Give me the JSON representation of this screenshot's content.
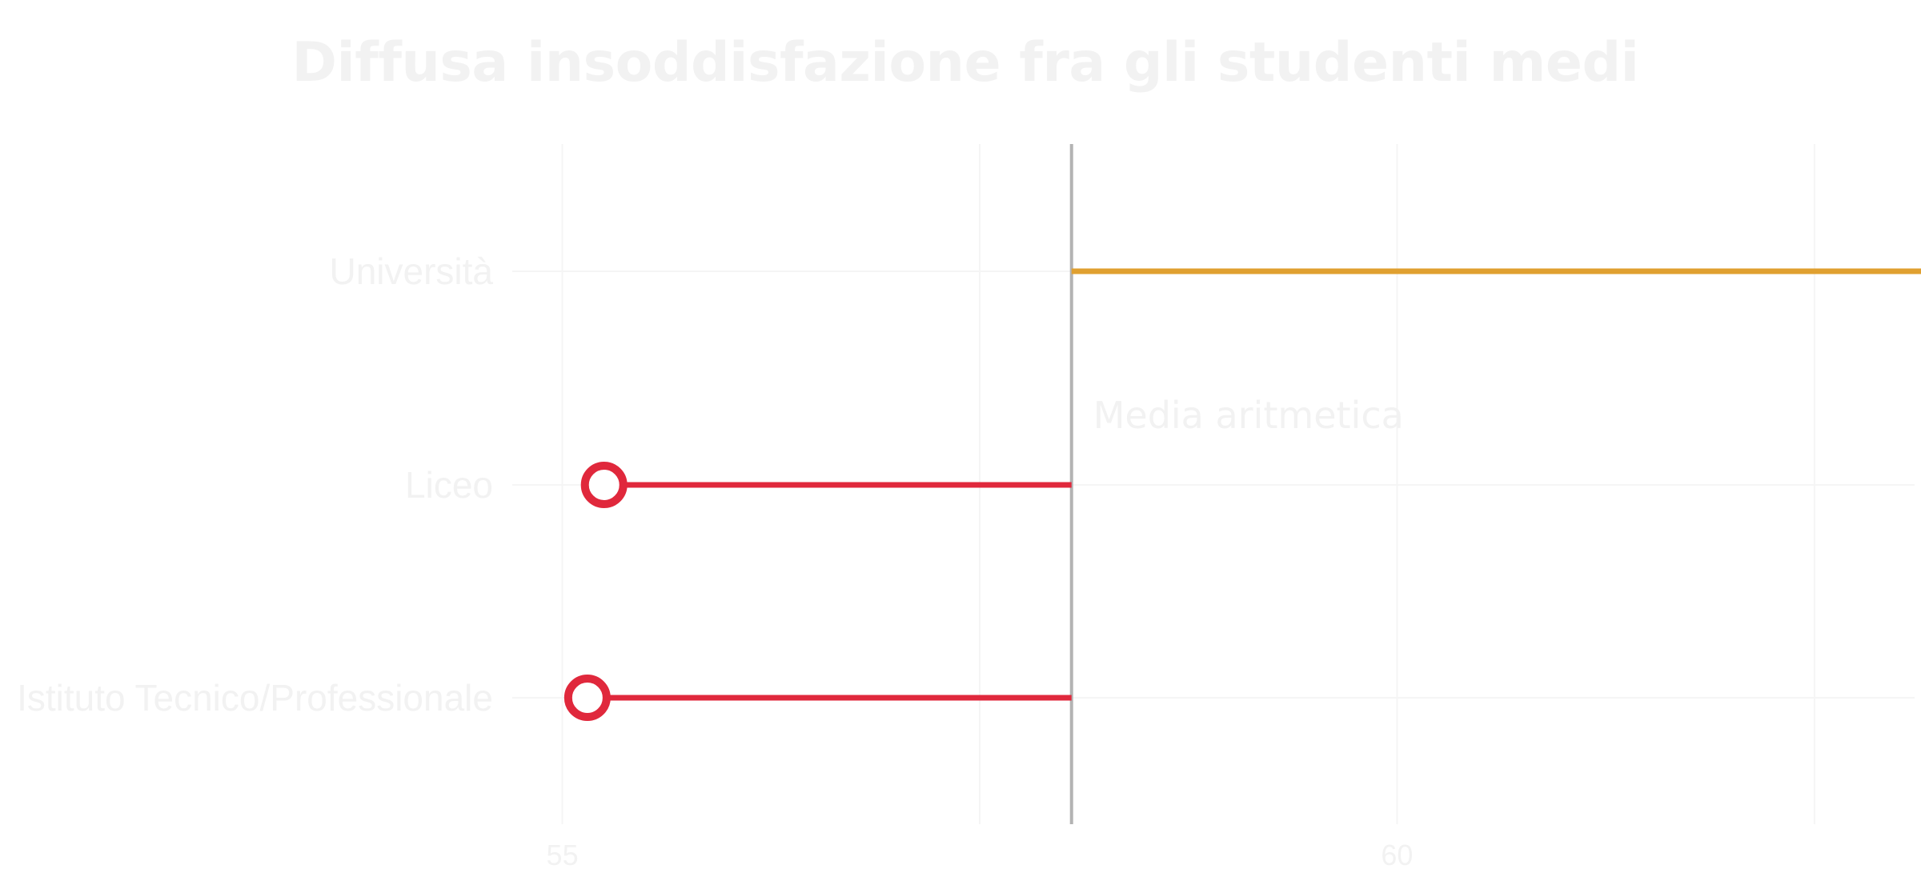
{
  "chart_data": {
    "type": "lollipop",
    "title": "Diffusa insoddisfazione fra gli studenti medi",
    "xlabel": "",
    "ylabel": "",
    "xlim": [
      54.7,
      63.1
    ],
    "x_ticks": [
      55,
      60
    ],
    "grid": true,
    "reference_line": {
      "value": 58.05,
      "label": "Media aritmetica",
      "color": "#b3b3b3"
    },
    "categories": [
      "Università",
      "Liceo",
      "Istituto Tecnico/Professionale"
    ],
    "values": [
      63.7,
      55.25,
      55.15
    ],
    "colors": [
      "#e0a030",
      "#e0283c",
      "#e0283c"
    ],
    "text_color": "#f2f2f2",
    "grid_color": "#f5f5f5"
  }
}
